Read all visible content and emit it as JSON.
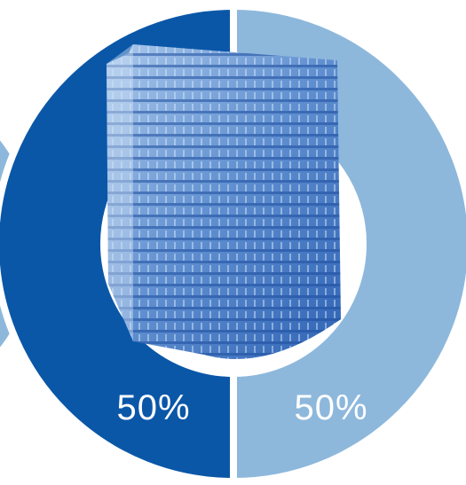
{
  "chart_data": {
    "type": "donut",
    "categories": [
      null,
      null
    ],
    "values": [
      50,
      50
    ],
    "value_labels": [
      "50%",
      "50%"
    ],
    "colors": [
      "#0a57a8",
      "#8db8dc"
    ]
  }
}
